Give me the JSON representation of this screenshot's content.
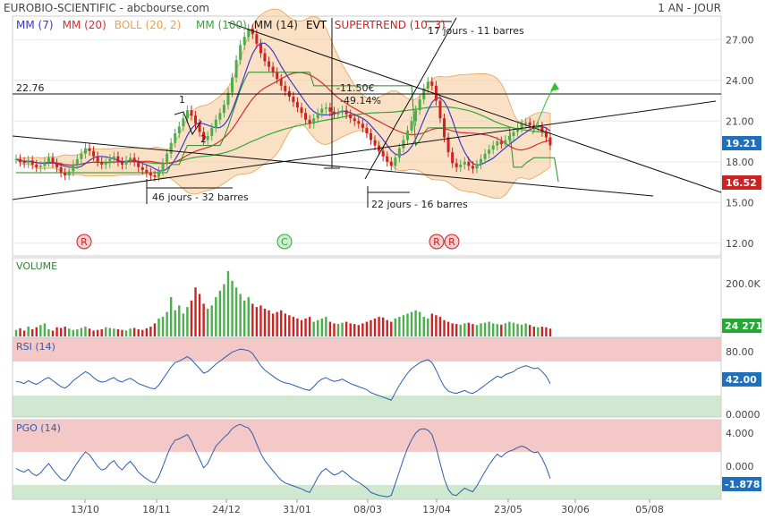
{
  "header": {
    "title": "EUROBIO-SCIENTIFIC - abcbourse.com",
    "period": "1 AN - JOUR"
  },
  "legend": [
    {
      "label": "MM (7)",
      "color": "#3a3acb"
    },
    {
      "label": "MM (20)",
      "color": "#d23030"
    },
    {
      "label": "BOLL (20, 2)",
      "color": "#f0a040"
    },
    {
      "label": "MM (100)",
      "color": "#33a833"
    },
    {
      "label": "MM (14)",
      "color": "#222222"
    },
    {
      "label": "EVT",
      "color": "#000000"
    },
    {
      "label": "SUPERTREND (10, 3)",
      "color": "#cc2222"
    }
  ],
  "colors": {
    "up": "#4cae4c",
    "down": "#cc2222",
    "boll_fill": "#f6c998",
    "mm7": "#3a3acb",
    "mm20": "#d23030",
    "mm100": "#33a833",
    "rsi_line": "#2a5db0",
    "rsi_overbought_zone": "#f5c8c8",
    "rsi_oversold_zone": "#cfe8cf",
    "last_price_badge": "#1f6fbf",
    "supertrend_badge": "#cc2222",
    "volume_badge": "#22aa33",
    "pgo_badge": "#1f6fbf"
  },
  "annotations": {
    "pattern_count_1": "46 jours - 32 barres",
    "pattern_count_2": "22 jours - 16 barres",
    "pattern_count_3": "17 jours - 11 barres",
    "evt_pct": "-11.50€",
    "evt_pct2": "-49.14%",
    "level_22_76": "22.76",
    "wave_1": "1",
    "wave_2": "2"
  },
  "signals": [
    {
      "label": "R",
      "color": "#cc2222",
      "date": "03/11"
    },
    {
      "label": "C",
      "color": "#33a833",
      "date": "30/12"
    },
    {
      "label": "R",
      "color": "#cc2222",
      "date": "13/04"
    },
    {
      "label": "R",
      "color": "#cc2222",
      "date": "17/04"
    }
  ],
  "chart_data": {
    "type": "candlestick",
    "price_axis": {
      "ticks": [
        "27.00",
        "24.00",
        "21.00",
        "18.00",
        "15.00",
        "12.00"
      ],
      "values": [
        27,
        24,
        21,
        18,
        15,
        12
      ],
      "ylim": [
        11.2,
        28.6
      ],
      "last_price": "19.21",
      "supertrend_value": "16.52"
    },
    "volume_axis": {
      "label": "VOLUME",
      "ticks": [
        "200.0K"
      ],
      "last_value": "24 271"
    },
    "rsi": {
      "label": "RSI (14)",
      "ticks": [
        "80.00",
        "0.0000"
      ],
      "last_value": "42.00",
      "ylim": [
        0,
        100
      ]
    },
    "pgo": {
      "label": "PGO (14)",
      "ticks": [
        "4.000",
        "0.000"
      ],
      "last_value": "-1.878",
      "ylim": [
        -4.5,
        6
      ]
    },
    "x_axis": {
      "labels": [
        "13/10",
        "18/11",
        "24/12",
        "31/01",
        "08/03",
        "13/04",
        "23/05",
        "30/06",
        "05/08"
      ]
    },
    "close_series": [
      18.2,
      18.0,
      17.9,
      18.1,
      17.8,
      17.6,
      17.7,
      18.0,
      18.3,
      17.9,
      17.6,
      17.2,
      17.0,
      17.3,
      17.8,
      18.2,
      18.6,
      19.0,
      18.8,
      18.4,
      18.0,
      17.8,
      17.9,
      18.2,
      18.4,
      18.0,
      17.8,
      18.1,
      18.3,
      18.0,
      17.6,
      17.4,
      17.2,
      17.0,
      16.9,
      17.3,
      17.9,
      18.6,
      19.4,
      20.1,
      20.6,
      21.2,
      21.8,
      21.4,
      20.8,
      20.2,
      19.6,
      19.9,
      20.5,
      21.1,
      21.6,
      22.2,
      23.1,
      24.2,
      25.5,
      26.6,
      27.2,
      27.8,
      27.4,
      26.7,
      26.0,
      25.4,
      25.0,
      24.6,
      24.1,
      23.6,
      23.2,
      22.8,
      22.4,
      22.0,
      21.6,
      21.1,
      20.8,
      21.2,
      21.6,
      21.9,
      22.0,
      21.7,
      21.5,
      21.6,
      21.8,
      21.5,
      21.2,
      21.0,
      20.8,
      20.5,
      20.1,
      19.6,
      19.2,
      18.8,
      18.4,
      18.0,
      17.7,
      18.3,
      19.0,
      19.6,
      20.3,
      21.0,
      21.8,
      22.6,
      23.4,
      23.9,
      23.6,
      22.5,
      21.2,
      19.8,
      18.7,
      17.9,
      17.6,
      17.8,
      18.0,
      17.7,
      17.5,
      17.8,
      18.2,
      18.6,
      18.9,
      19.2,
      19.5,
      19.3,
      19.6,
      19.9,
      20.2,
      20.5,
      20.8,
      20.9,
      20.7,
      20.5,
      20.6,
      20.2,
      19.8,
      19.21
    ],
    "supertrend_series": [
      17.2,
      17.2,
      17.2,
      17.2,
      17.2,
      17.2,
      17.2,
      17.2,
      17.2,
      17.2,
      17.2,
      17.2,
      17.2,
      17.2,
      17.2,
      17.2,
      17.2,
      17.2,
      17.2,
      17.2,
      17.2,
      17.2,
      17.2,
      17.2,
      17.2,
      17.2,
      17.2,
      17.2,
      17.2,
      17.2,
      17.2,
      17.2,
      17.2,
      17.2,
      17.2,
      17.2,
      17.2,
      17.2,
      17.8,
      17.8,
      17.8,
      18.5,
      19.2,
      19.2,
      19.2,
      19.2,
      19.2,
      19.2,
      19.2,
      19.2,
      19.2,
      19.8,
      20.6,
      21.5,
      22.4,
      23.3,
      24.0,
      24.6,
      24.6,
      24.6,
      24.6,
      24.6,
      24.6,
      24.6,
      24.6,
      24.6,
      24.6,
      24.6,
      24.6,
      24.6,
      24.6,
      24.6,
      24.6,
      23.6,
      23.6,
      23.6,
      23.6,
      23.6,
      23.6,
      23.6,
      23.6,
      23.6,
      23.6,
      23.6,
      23.6,
      23.6,
      23.6,
      23.6,
      23.6,
      23.6,
      23.6,
      23.6,
      23.6,
      23.6,
      23.6,
      23.6,
      23.6,
      23.6,
      19.2,
      19.6,
      20.1,
      20.5,
      20.5,
      20.5,
      20.5,
      20.5,
      20.5,
      20.5,
      20.5,
      20.5,
      20.5,
      20.5,
      20.5,
      20.5,
      20.5,
      20.5,
      20.5,
      20.5,
      20.5,
      20.5,
      20.5,
      20.5,
      17.6,
      17.6,
      17.6,
      17.9,
      18.1,
      18.3,
      18.3,
      18.3,
      18.3,
      18.3,
      18.3,
      16.52
    ],
    "volume_series": [
      20,
      25,
      18,
      30,
      22,
      28,
      35,
      40,
      22,
      18,
      28,
      26,
      30,
      24,
      20,
      22,
      26,
      30,
      24,
      18,
      20,
      22,
      28,
      26,
      24,
      22,
      20,
      18,
      24,
      26,
      22,
      20,
      25,
      30,
      40,
      55,
      60,
      75,
      120,
      80,
      95,
      70,
      90,
      110,
      150,
      130,
      100,
      85,
      95,
      120,
      140,
      160,
      200,
      170,
      150,
      130,
      110,
      120,
      100,
      90,
      95,
      85,
      80,
      70,
      75,
      80,
      70,
      65,
      60,
      55,
      50,
      55,
      60,
      45,
      50,
      55,
      60,
      45,
      40,
      38,
      42,
      45,
      40,
      38,
      35,
      40,
      45,
      50,
      55,
      60,
      58,
      50,
      45,
      55,
      60,
      65,
      70,
      75,
      80,
      75,
      60,
      55,
      70,
      65,
      60,
      50,
      45,
      40,
      38,
      36,
      40,
      42,
      38,
      35,
      40,
      42,
      45,
      40,
      38,
      36,
      40,
      45,
      42,
      38,
      36,
      40,
      35,
      30,
      28,
      30,
      28,
      24
    ],
    "rsi_series": [
      45,
      44,
      42,
      46,
      43,
      41,
      44,
      48,
      50,
      46,
      42,
      38,
      36,
      40,
      46,
      50,
      54,
      58,
      55,
      50,
      46,
      44,
      45,
      48,
      50,
      46,
      44,
      47,
      49,
      46,
      42,
      40,
      38,
      36,
      35,
      40,
      48,
      56,
      64,
      70,
      72,
      75,
      78,
      74,
      68,
      62,
      56,
      58,
      63,
      68,
      72,
      76,
      80,
      84,
      86,
      88,
      87,
      86,
      82,
      74,
      66,
      60,
      56,
      52,
      48,
      45,
      43,
      42,
      40,
      38,
      36,
      34,
      33,
      38,
      44,
      48,
      50,
      47,
      45,
      46,
      48,
      45,
      42,
      40,
      38,
      36,
      34,
      30,
      28,
      26,
      24,
      22,
      20,
      30,
      40,
      48,
      56,
      62,
      66,
      70,
      72,
      74,
      70,
      60,
      48,
      38,
      32,
      30,
      29,
      31,
      33,
      30,
      29,
      32,
      36,
      40,
      44,
      48,
      52,
      50,
      54,
      56,
      58,
      62,
      64,
      66,
      64,
      62,
      63,
      58,
      52,
      42
    ],
    "pgo_series": [
      -0.5,
      -0.8,
      -1.0,
      -0.6,
      -1.2,
      -1.5,
      -1.1,
      -0.4,
      0.2,
      -0.6,
      -1.3,
      -1.9,
      -2.2,
      -1.6,
      -0.6,
      0.3,
      1.1,
      1.8,
      1.4,
      0.6,
      -0.2,
      -0.7,
      -0.5,
      0.2,
      0.6,
      -0.2,
      -0.7,
      0.0,
      0.5,
      -0.2,
      -1.0,
      -1.5,
      -1.9,
      -2.3,
      -2.5,
      -1.6,
      -0.2,
      1.3,
      2.6,
      3.4,
      3.6,
      3.9,
      4.2,
      3.3,
      2.0,
      0.8,
      -0.4,
      0.2,
      1.4,
      2.6,
      3.2,
      3.8,
      4.3,
      5.0,
      5.4,
      5.6,
      5.3,
      5.1,
      4.3,
      2.9,
      1.6,
      0.6,
      -0.1,
      -0.8,
      -1.5,
      -2.1,
      -2.5,
      -2.7,
      -2.9,
      -3.1,
      -3.3,
      -3.6,
      -3.8,
      -2.8,
      -1.7,
      -0.9,
      -0.5,
      -1.0,
      -1.4,
      -1.2,
      -0.8,
      -1.2,
      -1.7,
      -2.1,
      -2.4,
      -2.8,
      -3.2,
      -3.8,
      -4.0,
      -4.2,
      -4.3,
      -4.4,
      -4.2,
      -2.6,
      -0.9,
      0.8,
      2.3,
      3.5,
      4.4,
      4.9,
      5.0,
      4.8,
      4.2,
      2.4,
      0.2,
      -1.9,
      -3.4,
      -4.1,
      -4.2,
      -3.7,
      -3.2,
      -3.5,
      -3.7,
      -2.9,
      -1.9,
      -0.9,
      0.0,
      0.8,
      1.5,
      1.1,
      1.6,
      1.9,
      2.1,
      2.4,
      2.6,
      2.4,
      2.0,
      1.7,
      1.8,
      0.9,
      -0.3,
      -1.878
    ]
  }
}
